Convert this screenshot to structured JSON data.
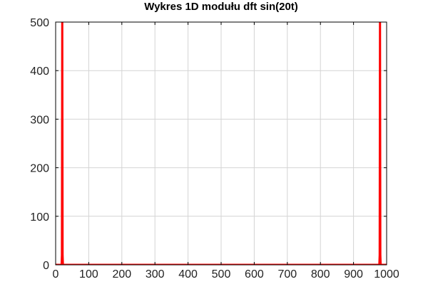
{
  "chart_data": {
    "type": "line",
    "title": "Wykres 1D modułu dft sin(20t)",
    "xlabel": "",
    "ylabel": "",
    "xlim": [
      0,
      1000
    ],
    "ylim": [
      0,
      500
    ],
    "xticks": [
      0,
      100,
      200,
      300,
      400,
      500,
      600,
      700,
      800,
      900,
      1000
    ],
    "yticks": [
      0,
      100,
      200,
      300,
      400,
      500
    ],
    "grid": true,
    "series": [
      {
        "color": "#ff0000",
        "points": [
          [
            0,
            0
          ],
          [
            17,
            0
          ],
          [
            18,
            0
          ],
          [
            19,
            20
          ],
          [
            20,
            500
          ],
          [
            21,
            20
          ],
          [
            22,
            0
          ],
          [
            23,
            0
          ],
          [
            977,
            0
          ],
          [
            978,
            0
          ],
          [
            979,
            20
          ],
          [
            980,
            500
          ],
          [
            981,
            20
          ],
          [
            982,
            0
          ],
          [
            983,
            0
          ],
          [
            1000,
            0
          ]
        ]
      }
    ]
  }
}
